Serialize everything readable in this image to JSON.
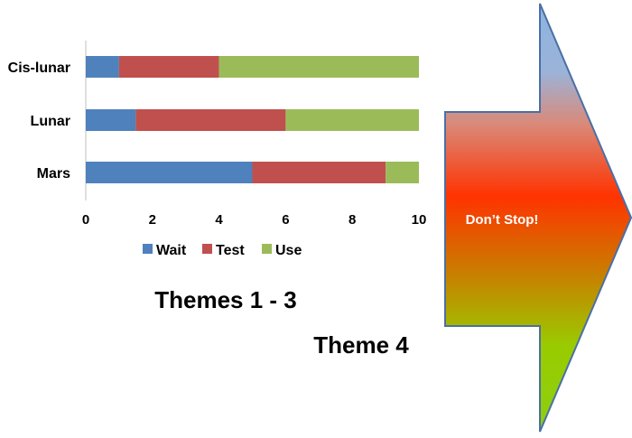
{
  "chart_data": {
    "type": "bar",
    "orientation": "horizontal",
    "stacked": true,
    "categories": [
      "Cis-lunar",
      "Lunar",
      "Mars"
    ],
    "series": [
      {
        "name": "Wait",
        "color": "#4f81bd",
        "values": [
          1,
          1.5,
          5
        ]
      },
      {
        "name": "Test",
        "color": "#c0504d",
        "values": [
          3,
          4.5,
          4
        ]
      },
      {
        "name": "Use",
        "color": "#9bbb59",
        "values": [
          6,
          4,
          1
        ]
      }
    ],
    "xlim": [
      0,
      10
    ],
    "xticks": [
      0,
      2,
      4,
      6,
      8,
      10
    ],
    "legend_position": "bottom",
    "grid": false
  },
  "annotations": {
    "themes_1_3": "Themes 1 - 3",
    "theme_4": "Theme 4"
  },
  "arrow": {
    "label": "Don’t Stop!",
    "gradient_colors": [
      "#8db3e2",
      "#ff3300",
      "#99cc00"
    ],
    "border_color": "#4a6fa5"
  }
}
